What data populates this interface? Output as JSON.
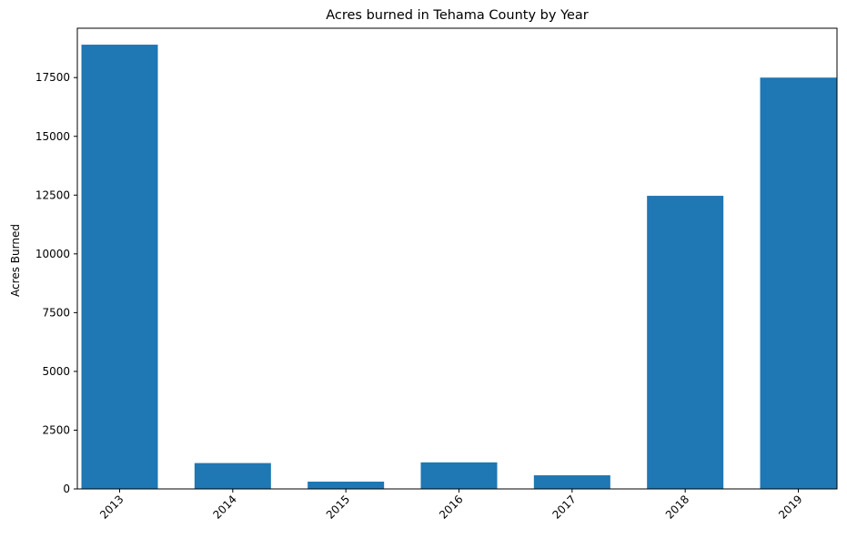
{
  "chart_data": {
    "type": "bar",
    "title": "Acres burned in Tehama County by Year",
    "xlabel": "",
    "ylabel": "Acres Burned",
    "categories": [
      "2013",
      "2014",
      "2015",
      "2016",
      "2017",
      "2018",
      "2019"
    ],
    "values": [
      18900,
      1100,
      310,
      1130,
      580,
      12470,
      17500
    ],
    "ylim": [
      0,
      19600
    ],
    "yticks": [
      0,
      2500,
      5000,
      7500,
      10000,
      12500,
      15000,
      17500
    ],
    "ytick_labels": [
      "0",
      "2500",
      "5000",
      "7500",
      "10000",
      "12500",
      "15000",
      "17500"
    ],
    "bar_color": "#1f77b4",
    "grid": false,
    "legend": "none"
  }
}
